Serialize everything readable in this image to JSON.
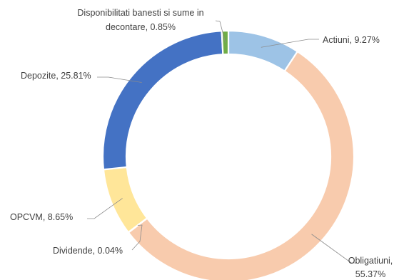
{
  "chart_data": {
    "type": "pie",
    "variant": "donut",
    "title": "",
    "legend": "none",
    "slices": [
      {
        "name": "Actiuni",
        "value": 9.27,
        "label": "Actiuni, 9.27%",
        "color": "#9DC3E6"
      },
      {
        "name": "Obligatiuni",
        "value": 55.37,
        "label": "Obligatiuni, 55.37%",
        "label_lines": [
          "Obligatiuni,",
          "55.37%"
        ],
        "color": "#F8CBAD"
      },
      {
        "name": "Dividende",
        "value": 0.04,
        "label": "Dividende, 0.04%",
        "color": "#D9D9D9"
      },
      {
        "name": "OPCVM",
        "value": 8.65,
        "label": "OPCVM, 8.65%",
        "color": "#FFE699"
      },
      {
        "name": "Depozite",
        "value": 25.81,
        "label": "Depozite, 25.81%",
        "color": "#4472C4"
      },
      {
        "name": "Disponibilitati banesti si sume in decontare",
        "value": 0.85,
        "label": "Disponibilitati banesti si sume in decontare, 0.85%",
        "label_lines": [
          "Disponibilitati banesti si sume in",
          "decontare, 0.85%"
        ],
        "color": "#70AD47"
      }
    ]
  }
}
